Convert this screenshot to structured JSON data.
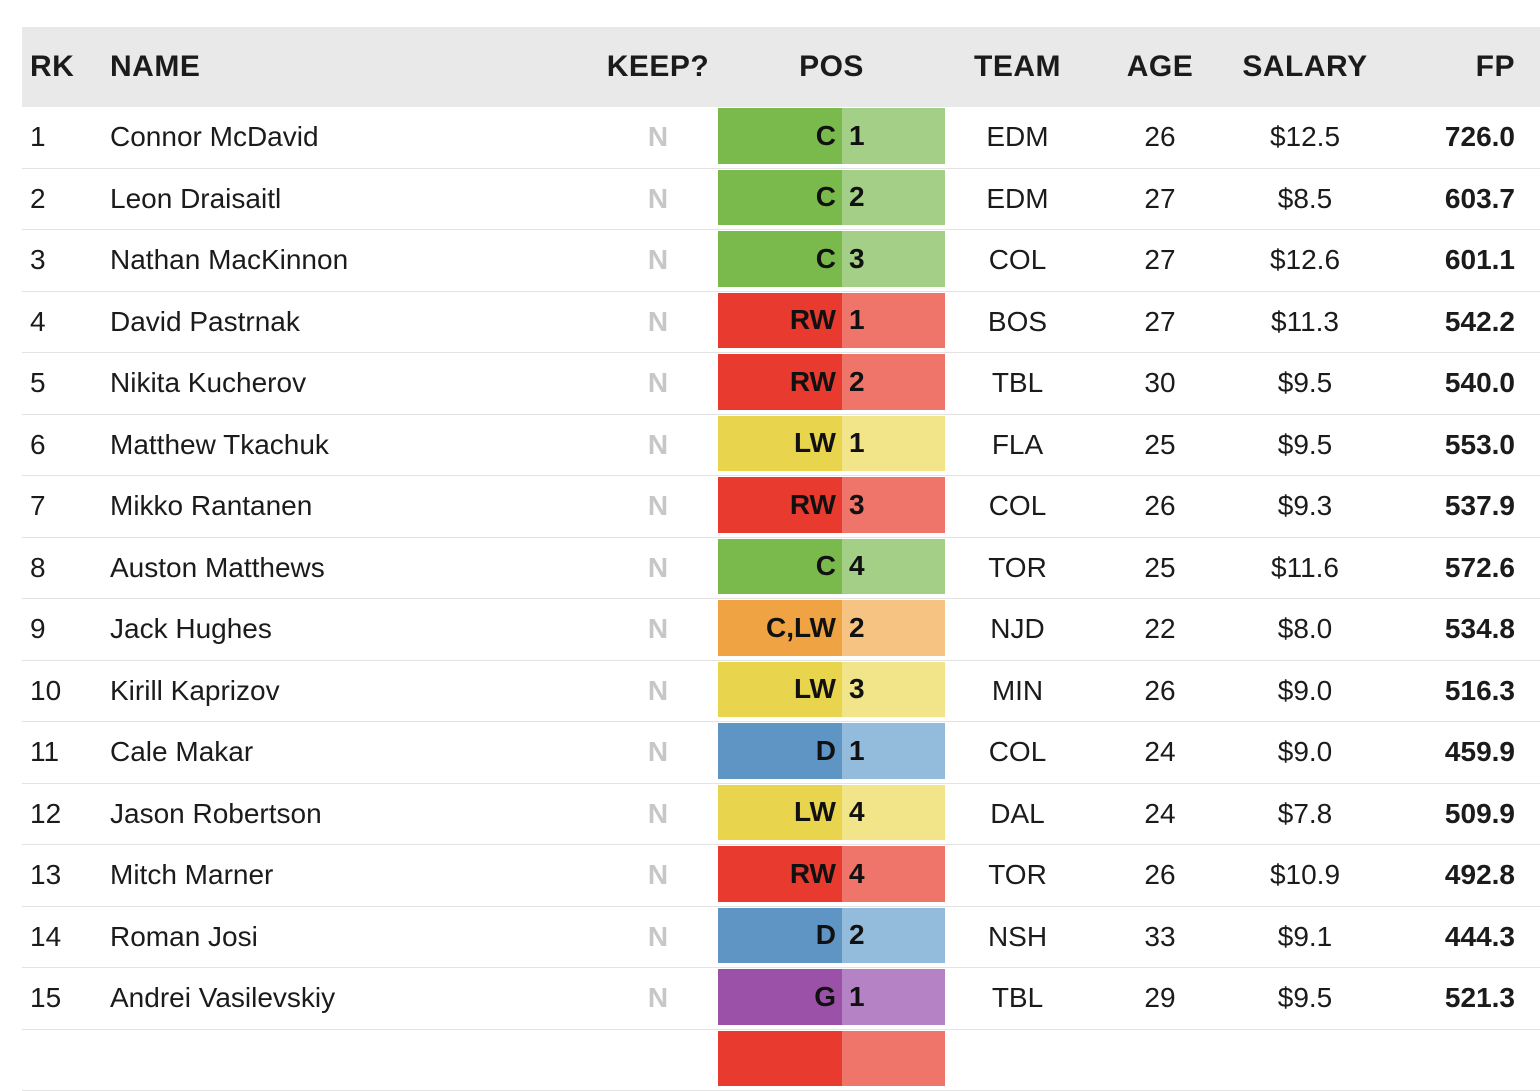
{
  "colors": {
    "header_bg": "#e9e9e9",
    "row_separator": "#e3e3e3",
    "keep_n_text": "#c7c7c7",
    "body_text": "#1b1b1b"
  },
  "table": {
    "columns": {
      "rk": "RK",
      "name": "NAME",
      "keep": "KEEP?",
      "pos": "POS",
      "team": "TEAM",
      "age": "AGE",
      "salary": "SALARY",
      "fp": "FP"
    },
    "pos_colors": {
      "C": {
        "dark": "#7ab94c",
        "light": "#a4cf86"
      },
      "RW": {
        "dark": "#e83a2f",
        "light": "#ef7469"
      },
      "LW": {
        "dark": "#e9d44e",
        "light": "#f2e488"
      },
      "C,LW": {
        "dark": "#f0a342",
        "light": "#f6c382"
      },
      "D": {
        "dark": "#5e95c5",
        "light": "#93bbdb"
      },
      "G": {
        "dark": "#9c51a9",
        "light": "#b583c5"
      }
    },
    "rows": [
      {
        "rk": "1",
        "name": "Connor McDavid",
        "keep": "N",
        "pos": "C",
        "pos_rank": "1",
        "team": "EDM",
        "age": "26",
        "salary": "$12.5",
        "fp": "726.0"
      },
      {
        "rk": "2",
        "name": "Leon Draisaitl",
        "keep": "N",
        "pos": "C",
        "pos_rank": "2",
        "team": "EDM",
        "age": "27",
        "salary": "$8.5",
        "fp": "603.7"
      },
      {
        "rk": "3",
        "name": "Nathan MacKinnon",
        "keep": "N",
        "pos": "C",
        "pos_rank": "3",
        "team": "COL",
        "age": "27",
        "salary": "$12.6",
        "fp": "601.1"
      },
      {
        "rk": "4",
        "name": "David Pastrnak",
        "keep": "N",
        "pos": "RW",
        "pos_rank": "1",
        "team": "BOS",
        "age": "27",
        "salary": "$11.3",
        "fp": "542.2"
      },
      {
        "rk": "5",
        "name": "Nikita Kucherov",
        "keep": "N",
        "pos": "RW",
        "pos_rank": "2",
        "team": "TBL",
        "age": "30",
        "salary": "$9.5",
        "fp": "540.0"
      },
      {
        "rk": "6",
        "name": "Matthew Tkachuk",
        "keep": "N",
        "pos": "LW",
        "pos_rank": "1",
        "team": "FLA",
        "age": "25",
        "salary": "$9.5",
        "fp": "553.0"
      },
      {
        "rk": "7",
        "name": "Mikko Rantanen",
        "keep": "N",
        "pos": "RW",
        "pos_rank": "3",
        "team": "COL",
        "age": "26",
        "salary": "$9.3",
        "fp": "537.9"
      },
      {
        "rk": "8",
        "name": "Auston Matthews",
        "keep": "N",
        "pos": "C",
        "pos_rank": "4",
        "team": "TOR",
        "age": "25",
        "salary": "$11.6",
        "fp": "572.6"
      },
      {
        "rk": "9",
        "name": "Jack Hughes",
        "keep": "N",
        "pos": "C,LW",
        "pos_rank": "2",
        "team": "NJD",
        "age": "22",
        "salary": "$8.0",
        "fp": "534.8"
      },
      {
        "rk": "10",
        "name": "Kirill Kaprizov",
        "keep": "N",
        "pos": "LW",
        "pos_rank": "3",
        "team": "MIN",
        "age": "26",
        "salary": "$9.0",
        "fp": "516.3"
      },
      {
        "rk": "11",
        "name": "Cale Makar",
        "keep": "N",
        "pos": "D",
        "pos_rank": "1",
        "team": "COL",
        "age": "24",
        "salary": "$9.0",
        "fp": "459.9"
      },
      {
        "rk": "12",
        "name": "Jason Robertson",
        "keep": "N",
        "pos": "LW",
        "pos_rank": "4",
        "team": "DAL",
        "age": "24",
        "salary": "$7.8",
        "fp": "509.9"
      },
      {
        "rk": "13",
        "name": "Mitch Marner",
        "keep": "N",
        "pos": "RW",
        "pos_rank": "4",
        "team": "TOR",
        "age": "26",
        "salary": "$10.9",
        "fp": "492.8"
      },
      {
        "rk": "14",
        "name": "Roman Josi",
        "keep": "N",
        "pos": "D",
        "pos_rank": "2",
        "team": "NSH",
        "age": "33",
        "salary": "$9.1",
        "fp": "444.3"
      },
      {
        "rk": "15",
        "name": "Andrei Vasilevskiy",
        "keep": "N",
        "pos": "G",
        "pos_rank": "1",
        "team": "TBL",
        "age": "29",
        "salary": "$9.5",
        "fp": "521.3"
      }
    ],
    "partial_row": {
      "pos": "RW"
    }
  }
}
